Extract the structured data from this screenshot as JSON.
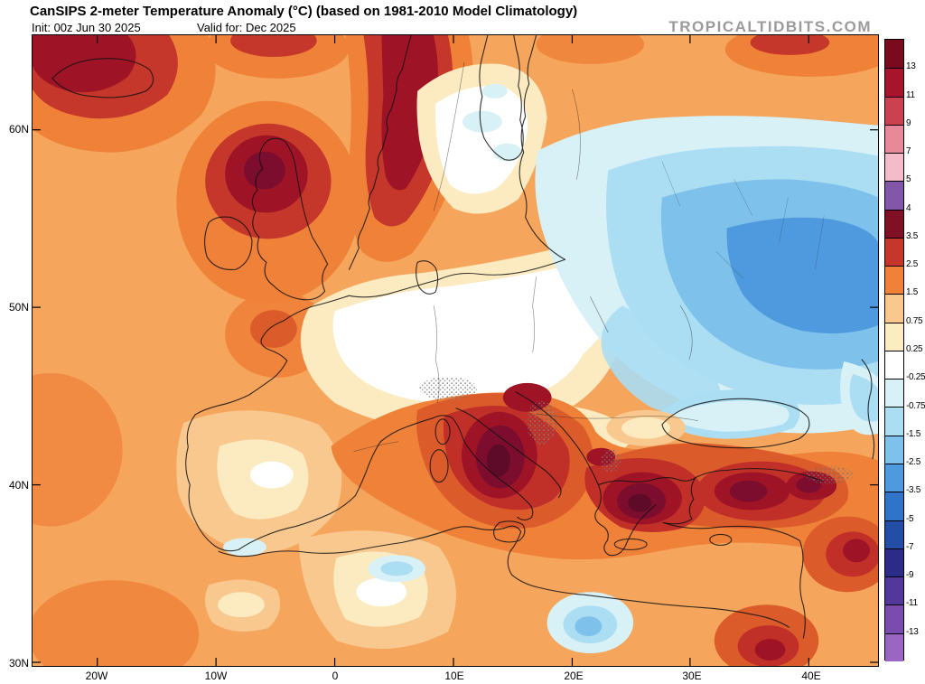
{
  "header": {
    "title": "CanSIPS 2-meter Temperature Anomaly (°C) (based on 1981-2010 Model Climatology)",
    "init_label": "Init: 00z Jun 30 2025",
    "valid_label": "Valid for: Dec 2025",
    "watermark": "TROPICALTIDBITS.COM"
  },
  "map": {
    "lat_labels": [
      "60N",
      "50N",
      "40N",
      "30N"
    ],
    "lon_labels": [
      "20W",
      "10W",
      "0",
      "10E",
      "20E",
      "30E",
      "40E"
    ]
  },
  "colorbar": {
    "tick_labels": [
      "13",
      "11",
      "9",
      "7",
      "5",
      "4",
      "3.5",
      "2.5",
      "1.5",
      "0.75",
      "0.25",
      "-0.25",
      "-0.75",
      "-1.5",
      "-2.5",
      "-3.5",
      "-5",
      "-7",
      "-9",
      "-11",
      "-13"
    ],
    "colors": [
      "#7a0a1e",
      "#a6152b",
      "#cc4150",
      "#e8899a",
      "#f4bccb",
      "#8256a8",
      "#801125",
      "#c5372a",
      "#ef8139",
      "#f8c88e",
      "#fcedc0",
      "#ffffff",
      "#d8f1f6",
      "#abddf3",
      "#7ec1eb",
      "#4f9ade",
      "#2f74c8",
      "#234ea6",
      "#2c2c88",
      "#54379a",
      "#7a4cae",
      "#9a66c2"
    ]
  },
  "map_palette": {
    "warm_levels": [
      "#f5a55c",
      "#ef8139",
      "#dc5b2b",
      "#c13028",
      "#9e1426",
      "#7c0d2e",
      "#5e0b2a"
    ],
    "neutral_levels": [
      "#f8c88e",
      "#fcebc0",
      "#ffffff"
    ],
    "cool_levels": [
      "#d8f1f6",
      "#abddf3",
      "#7ec1eb",
      "#4f9ade"
    ]
  }
}
